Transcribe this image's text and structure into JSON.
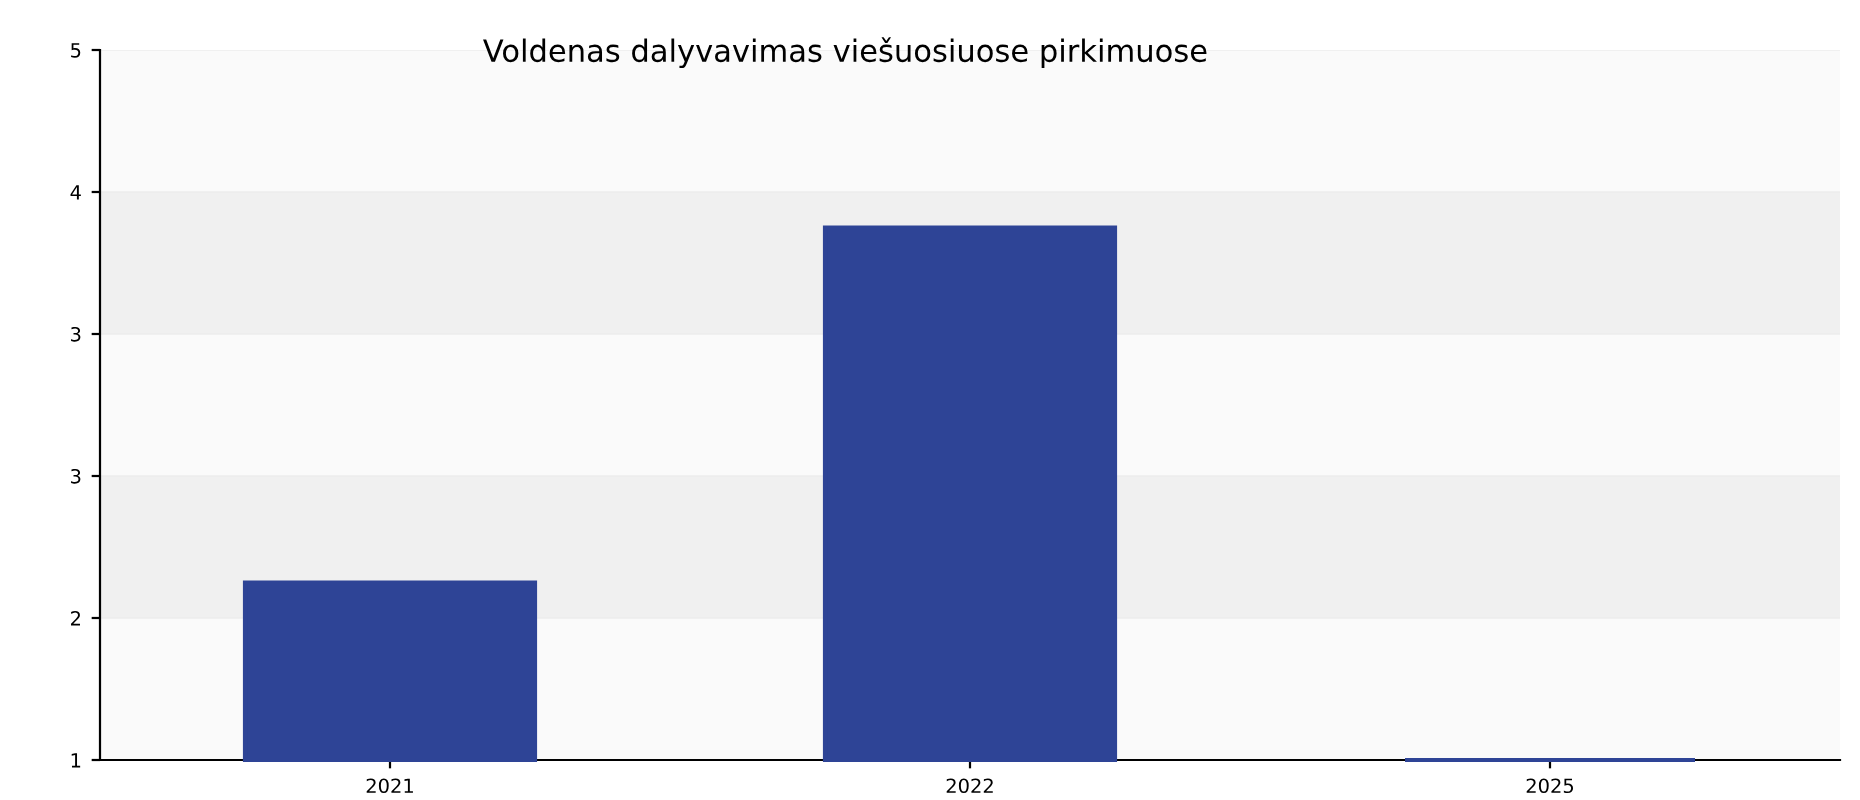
{
  "chart_data": {
    "type": "bar",
    "title": "Voldenas dalyvavimas viešuosiuose pirkimuose",
    "categories": [
      "2021",
      "2022",
      "2025"
    ],
    "values": [
      2.0,
      4.0,
      1.0
    ],
    "color": "#2e4496",
    "ylim": [
      1,
      5
    ],
    "yticks": [
      1,
      {
        "value": 1.8,
        "label": "2"
      },
      {
        "value": 2.6,
        "label": "3"
      },
      {
        "value": 3.4,
        "label": "3"
      },
      {
        "value": 4.2,
        "label": "4"
      },
      5
    ],
    "grid": "y"
  }
}
